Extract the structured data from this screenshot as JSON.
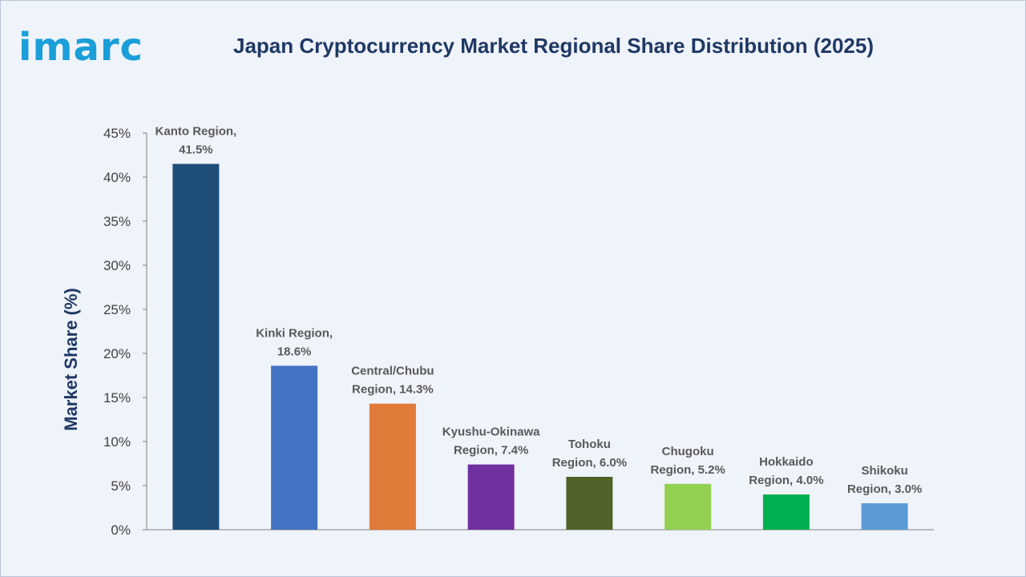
{
  "brand": {
    "logo_text": "imarc",
    "logo_color": "#1a9fd9"
  },
  "chart_data": {
    "type": "bar",
    "title": "Japan Cryptocurrency Market Regional Share Distribution (2025)",
    "xlabel": "",
    "ylabel": "Market Share (%)",
    "ylim": [
      0,
      45
    ],
    "yticks": [
      0,
      5,
      10,
      15,
      20,
      25,
      30,
      35,
      40,
      45
    ],
    "ytick_labels": [
      "0%",
      "5%",
      "10%",
      "15%",
      "20%",
      "25%",
      "30%",
      "35%",
      "40%",
      "45%"
    ],
    "grid": false,
    "categories": [
      "Kanto Region",
      "Kinki Region",
      "Central/Chubu Region",
      "Kyushu-Okinawa Region",
      "Tohoku Region",
      "Chugoku Region",
      "Hokkaido Region",
      "Shikoku Region"
    ],
    "values": [
      41.5,
      18.6,
      14.3,
      7.4,
      6.0,
      5.2,
      4.0,
      3.0
    ],
    "data_labels": [
      [
        "Kanto Region,",
        "41.5%"
      ],
      [
        "Kinki Region,",
        "18.6%"
      ],
      [
        "Central/Chubu",
        "Region, 14.3%"
      ],
      [
        "Kyushu-Okinawa",
        "Region, 7.4%"
      ],
      [
        "Tohoku",
        "Region, 6.0%"
      ],
      [
        "Chugoku",
        "Region, 5.2%"
      ],
      [
        "Hokkaido",
        "Region, 4.0%"
      ],
      [
        "Shikoku",
        "Region, 3.0%"
      ]
    ],
    "colors": [
      "#1f4e79",
      "#4472c4",
      "#e07b39",
      "#7030a0",
      "#4f6228",
      "#92d050",
      "#00b050",
      "#5b9bd5"
    ]
  }
}
